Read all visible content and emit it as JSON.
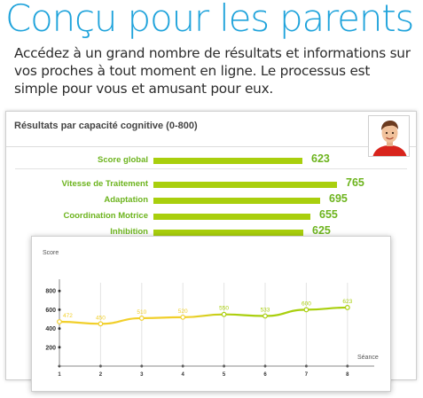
{
  "hero": {
    "title": "Conçu pour les parents",
    "text": "Accédez à un grand nombre de résultats et informations sur vos proches à tout moment en ligne. Le processus est simple pour vous et amusant pour eux."
  },
  "results": {
    "title": "Résultats par capacité cognitive (0-800)",
    "max": 800,
    "global": {
      "label": "Score global",
      "value": 623
    },
    "items": [
      {
        "label": "Vitesse de Traitement",
        "value": 765
      },
      {
        "label": "Adaptation",
        "value": 695
      },
      {
        "label": "Coordination Motrice",
        "value": 655
      },
      {
        "label": "Inhibition",
        "value": 625
      }
    ]
  },
  "colors": {
    "accent_blue": "#1fa3db",
    "bar_green": "#a9cf0d",
    "label_green": "#6db41e",
    "line_yellow": "#f1cf2a",
    "line_green": "#a9cf0d"
  },
  "chart_data": {
    "type": "line",
    "ylabel": "Score",
    "xlabel": "Séance",
    "x": [
      1,
      2,
      3,
      4,
      5,
      6,
      7,
      8
    ],
    "y": [
      472,
      450,
      510,
      520,
      550,
      533,
      600,
      623
    ],
    "yticks": [
      200,
      400,
      600,
      800
    ],
    "ylim": [
      0,
      800
    ],
    "grid": "vertical"
  }
}
